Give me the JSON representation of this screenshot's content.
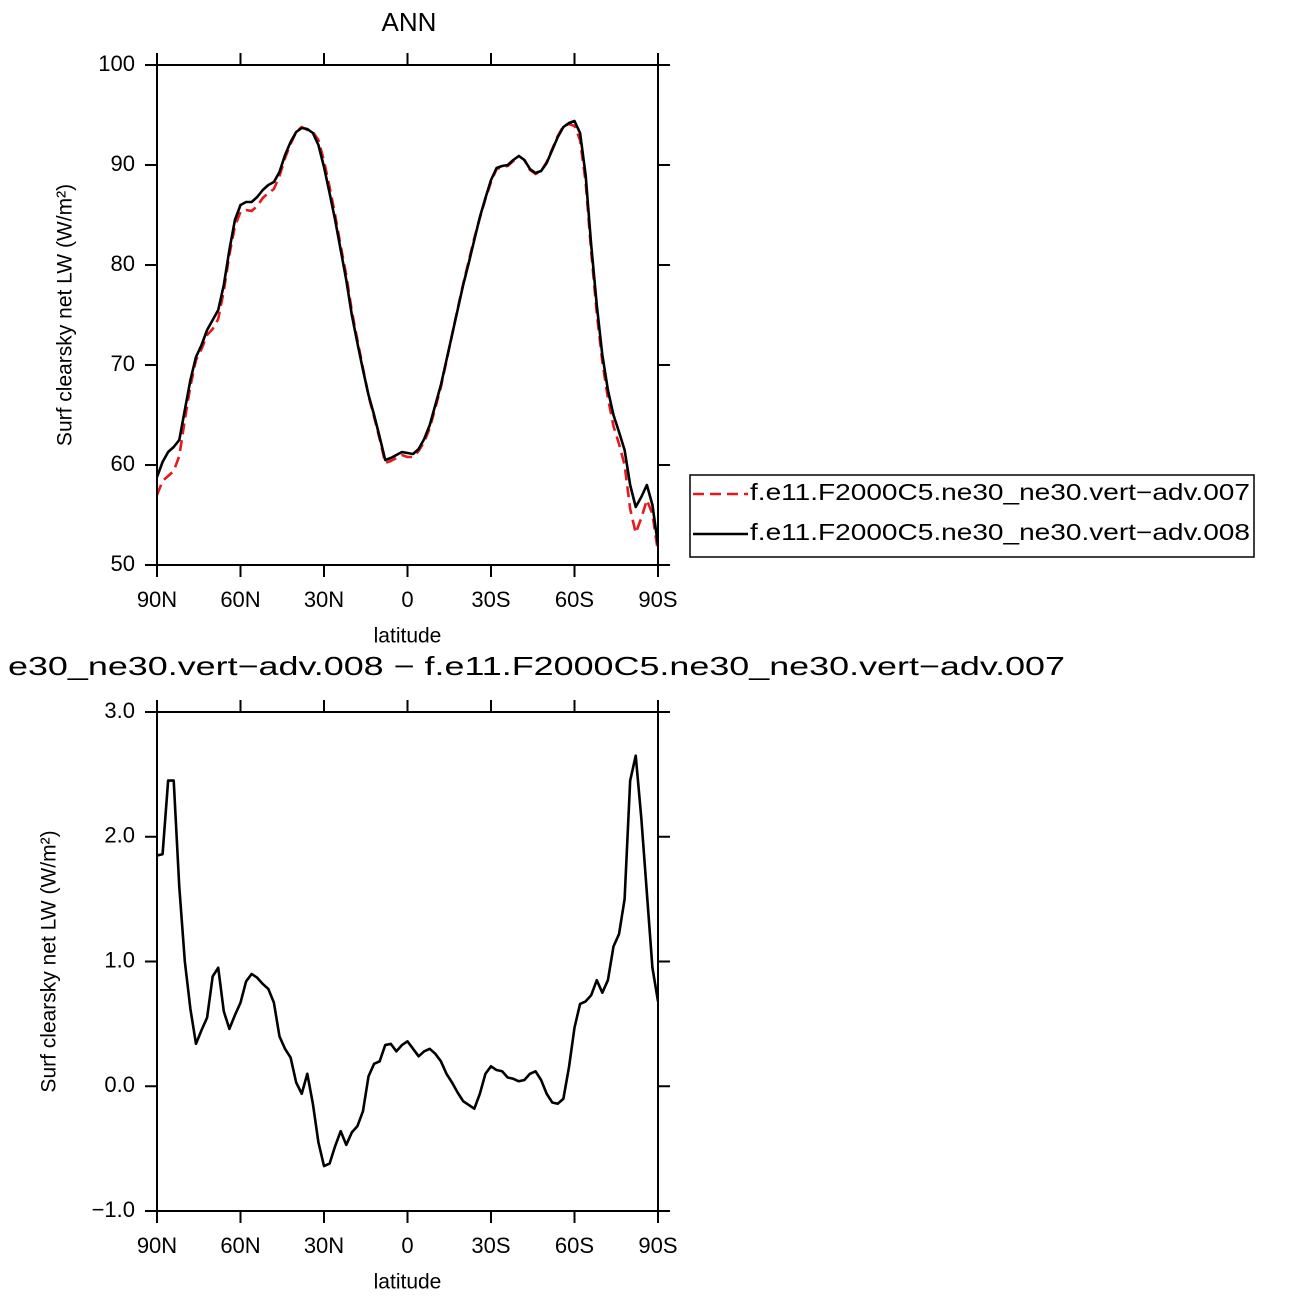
{
  "chart_data": [
    {
      "type": "line",
      "title": "ANN",
      "x_label": "latitude",
      "y_label": "Surf clearsky net LW (W/m²)",
      "x": [
        90,
        88,
        86,
        84,
        82,
        80,
        78,
        76,
        74,
        72,
        70,
        68,
        66,
        64,
        62,
        60,
        58,
        56,
        54,
        52,
        50,
        48,
        46,
        44,
        42,
        40,
        38,
        36,
        34,
        32,
        30,
        28,
        26,
        24,
        22,
        20,
        18,
        16,
        14,
        12,
        10,
        8,
        6,
        4,
        2,
        0,
        -2,
        -4,
        -6,
        -8,
        -10,
        -12,
        -14,
        -16,
        -18,
        -20,
        -22,
        -24,
        -26,
        -28,
        -30,
        -32,
        -34,
        -36,
        -38,
        -40,
        -42,
        -44,
        -46,
        -48,
        -50,
        -52,
        -54,
        -56,
        -58,
        -60,
        -62,
        -64,
        -66,
        -68,
        -70,
        -72,
        -74,
        -76,
        -78,
        -80,
        -82,
        -84,
        -86,
        -88,
        -90
      ],
      "series": [
        {
          "name": "f.e11.F2000C5.ne30_ne30.vert−adv.007",
          "color": "#e41a1c",
          "line_style": "dashed",
          "values": [
            57.0,
            58.4,
            58.9,
            59.4,
            60.9,
            64.5,
            67.9,
            70.5,
            71.6,
            73.0,
            73.6,
            74.6,
            77.4,
            81.0,
            83.9,
            85.3,
            85.5,
            85.4,
            85.9,
            86.7,
            87.2,
            87.6,
            88.9,
            90.7,
            92.1,
            93.3,
            93.8,
            93.5,
            93.3,
            92.5,
            90.4,
            87.8,
            85.0,
            81.9,
            79.0,
            75.4,
            72.5,
            69.7,
            66.9,
            64.8,
            62.6,
            60.2,
            60.4,
            60.7,
            61.0,
            60.8,
            60.8,
            61.4,
            62.3,
            63.7,
            65.7,
            67.8,
            70.4,
            73.0,
            75.6,
            78.1,
            80.4,
            82.7,
            84.7,
            86.6,
            88.3,
            89.6,
            89.8,
            89.9,
            90.4,
            90.9,
            90.5,
            89.5,
            89.1,
            89.4,
            90.3,
            91.6,
            92.9,
            93.9,
            94.1,
            93.9,
            92.5,
            88.3,
            81.3,
            75.2,
            70.3,
            66.7,
            63.9,
            62.1,
            60.0,
            55.6,
            53.2,
            54.7,
            56.5,
            55.1,
            51.3
          ]
        },
        {
          "name": "f.e11.F2000C5.ne30_ne30.vert−adv.008",
          "color": "#000000",
          "line_style": "solid",
          "values": [
            58.8,
            60.3,
            61.3,
            61.8,
            62.5,
            65.5,
            68.5,
            70.8,
            72,
            73.5,
            74.5,
            75.5,
            78,
            81.5,
            84.5,
            86,
            86.3,
            86.3,
            86.8,
            87.5,
            88,
            88.3,
            89.3,
            91,
            92.3,
            93.3,
            93.7,
            93.6,
            93.2,
            92,
            89.8,
            87.2,
            84.5,
            81.5,
            78.5,
            75,
            72.2,
            69.5,
            67,
            65,
            62.8,
            60.5,
            60.7,
            61,
            61.3,
            61.2,
            61.1,
            61.6,
            62.6,
            64,
            66,
            68,
            70.5,
            73,
            75.5,
            78,
            80.2,
            82.5,
            84.8,
            86.7,
            88.5,
            89.7,
            89.9,
            90,
            90.5,
            90.9,
            90.5,
            89.6,
            89.2,
            89.4,
            90.2,
            91.5,
            92.8,
            93.8,
            94.2,
            94.4,
            93.2,
            89,
            82,
            76,
            71,
            67.5,
            65,
            63.3,
            61.5,
            58,
            55.8,
            56.8,
            58,
            56,
            52
          ]
        }
      ],
      "xlim": [
        90,
        -90
      ],
      "xticks": [
        {
          "value": 90,
          "label": "90N"
        },
        {
          "value": 60,
          "label": "60N"
        },
        {
          "value": 30,
          "label": "30N"
        },
        0,
        {
          "value": -30,
          "label": "30S"
        },
        {
          "value": -60,
          "label": "60S"
        },
        {
          "value": -90,
          "label": "90S"
        }
      ],
      "ylim": [
        50,
        100
      ],
      "yticks": [
        50,
        60,
        70,
        80,
        90,
        100
      ],
      "legend": "right",
      "grid": false
    },
    {
      "type": "line",
      "title": "e30_ne30.vert−adv.008 − f.e11.F2000C5.ne30_ne30.vert−adv.007",
      "x_label": "latitude",
      "y_label": "Surf clearsky net LW (W/m²)",
      "x": [
        90,
        88,
        86,
        84,
        82,
        80,
        78,
        76,
        74,
        72,
        70,
        68,
        66,
        64,
        62,
        60,
        58,
        56,
        54,
        52,
        50,
        48,
        46,
        44,
        42,
        40,
        38,
        36,
        34,
        32,
        30,
        28,
        26,
        24,
        22,
        20,
        18,
        16,
        14,
        12,
        10,
        8,
        6,
        4,
        2,
        0,
        -2,
        -4,
        -6,
        -8,
        -10,
        -12,
        -14,
        -16,
        -18,
        -20,
        -22,
        -24,
        -26,
        -28,
        -30,
        -32,
        -34,
        -36,
        -38,
        -40,
        -42,
        -44,
        -46,
        -48,
        -50,
        -52,
        -54,
        -56,
        -58,
        -60,
        -62,
        -64,
        -66,
        -68,
        -70,
        -72,
        -74,
        -76,
        -78,
        -80,
        -82,
        -84,
        -86,
        -88,
        -90
      ],
      "color": "#000000",
      "values": [
        1.85,
        1.86,
        2.45,
        2.45,
        1.6,
        1.0,
        0.62,
        0.34,
        0.45,
        0.55,
        0.88,
        0.95,
        0.6,
        0.46,
        0.57,
        0.67,
        0.84,
        0.9,
        0.87,
        0.82,
        0.78,
        0.67,
        0.4,
        0.3,
        0.23,
        0.03,
        -0.06,
        0.1,
        -0.14,
        -0.45,
        -0.64,
        -0.62,
        -0.48,
        -0.36,
        -0.47,
        -0.37,
        -0.32,
        -0.2,
        0.08,
        0.18,
        0.2,
        0.33,
        0.34,
        0.28,
        0.33,
        0.36,
        0.3,
        0.24,
        0.28,
        0.3,
        0.26,
        0.2,
        0.1,
        0.03,
        -0.05,
        -0.12,
        -0.15,
        -0.18,
        -0.06,
        0.1,
        0.16,
        0.13,
        0.12,
        0.07,
        0.06,
        0.04,
        0.05,
        0.1,
        0.12,
        0.05,
        -0.06,
        -0.13,
        -0.14,
        -0.1,
        0.15,
        0.47,
        0.66,
        0.68,
        0.73,
        0.85,
        0.75,
        0.85,
        1.12,
        1.22,
        1.5,
        2.45,
        2.65,
        2.15,
        1.55,
        0.95,
        0.68
      ],
      "xlim": [
        90,
        -90
      ],
      "xticks": [
        {
          "value": 90,
          "label": "90N"
        },
        {
          "value": 60,
          "label": "60N"
        },
        {
          "value": 30,
          "label": "30N"
        },
        0,
        {
          "value": -30,
          "label": "30S"
        },
        {
          "value": -60,
          "label": "60S"
        },
        {
          "value": -90,
          "label": "90S"
        }
      ],
      "ylim": [
        -1,
        3
      ],
      "yticks": [
        {
          "value": -1,
          "label": "−1.0"
        },
        {
          "value": 0,
          "label": "0.0"
        },
        {
          "value": 1,
          "label": "1.0"
        },
        {
          "value": 2,
          "label": "2.0"
        },
        {
          "value": 3,
          "label": "3.0"
        }
      ],
      "grid": false
    }
  ]
}
